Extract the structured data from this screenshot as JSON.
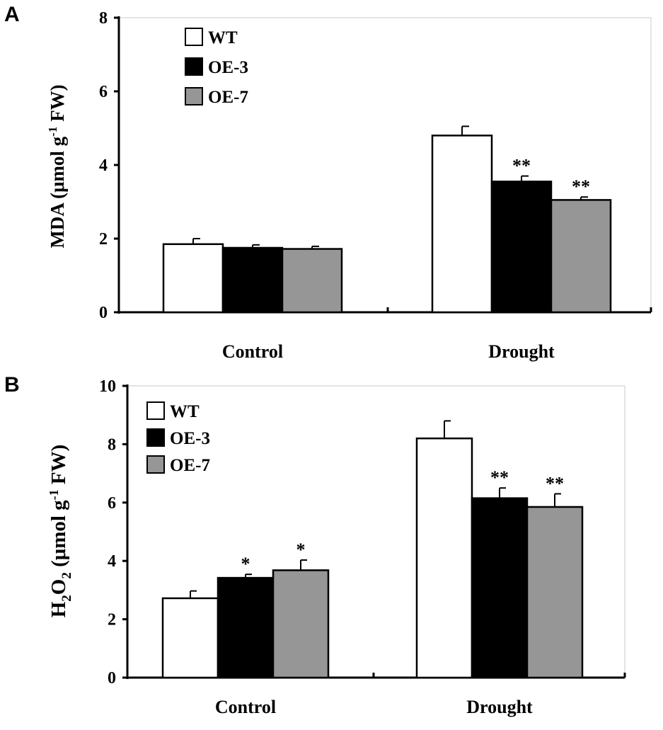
{
  "panels": [
    {
      "letter": "A",
      "ylabel_main": "MDA (μmol g",
      "ylabel_sup": "-1",
      "ylabel_tail": " FW)"
    },
    {
      "letter": "B",
      "ylabel_h": "H",
      "ylabel_sub1": "2",
      "ylabel_o": "O",
      "ylabel_sub2": "2",
      "ylabel_rest": " (μmol g",
      "ylabel_sup": "-1",
      "ylabel_tail": " FW)"
    }
  ],
  "chart_data": [
    {
      "type": "bar",
      "title": "A",
      "ylabel": "MDA (μmol g-1 FW)",
      "xlabel": "",
      "categories": [
        "Control",
        "Drought"
      ],
      "ylim": [
        0,
        8
      ],
      "yticks": [
        0,
        2,
        4,
        6,
        8
      ],
      "grid": false,
      "legend_position": "top-left",
      "series": [
        {
          "name": "WT",
          "color": "#ffffff",
          "values": [
            1.85,
            4.8
          ],
          "errors": [
            0.15,
            0.25
          ],
          "significance": [
            "",
            ""
          ]
        },
        {
          "name": "OE-3",
          "color": "#000000",
          "values": [
            1.75,
            3.55
          ],
          "errors": [
            0.08,
            0.15
          ],
          "significance": [
            "",
            "**"
          ]
        },
        {
          "name": "OE-7",
          "color": "#969696",
          "values": [
            1.72,
            3.05
          ],
          "errors": [
            0.07,
            0.08
          ],
          "significance": [
            "",
            "**"
          ]
        }
      ]
    },
    {
      "type": "bar",
      "title": "B",
      "ylabel": "H2O2 (μmol g-1 FW)",
      "xlabel": "",
      "categories": [
        "Control",
        "Drought"
      ],
      "ylim": [
        0,
        10
      ],
      "yticks": [
        0,
        2,
        4,
        6,
        8,
        10
      ],
      "grid": false,
      "legend_position": "top-left",
      "series": [
        {
          "name": "WT",
          "color": "#ffffff",
          "values": [
            2.72,
            8.2
          ],
          "errors": [
            0.25,
            0.6
          ],
          "significance": [
            "",
            ""
          ]
        },
        {
          "name": "OE-3",
          "color": "#000000",
          "values": [
            3.42,
            6.15
          ],
          "errors": [
            0.12,
            0.35
          ],
          "significance": [
            "*",
            "**"
          ]
        },
        {
          "name": "OE-7",
          "color": "#969696",
          "values": [
            3.68,
            5.85
          ],
          "errors": [
            0.35,
            0.45
          ],
          "significance": [
            "*",
            "**"
          ]
        }
      ]
    }
  ]
}
